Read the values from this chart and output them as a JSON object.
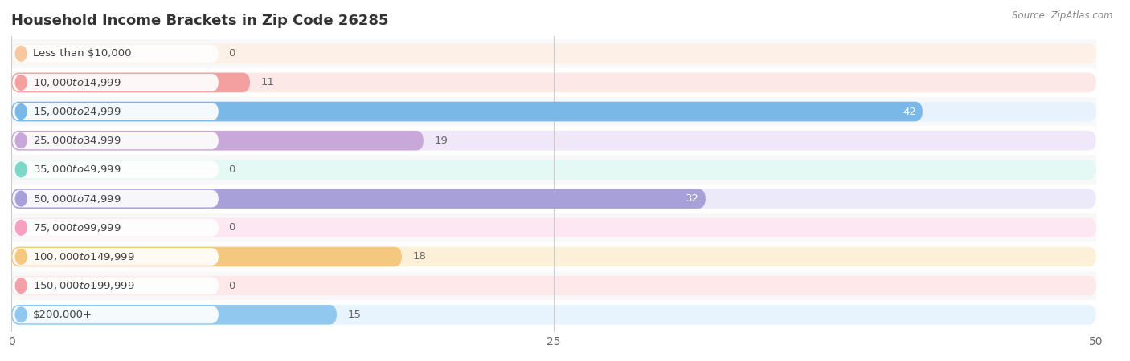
{
  "title": "Household Income Brackets in Zip Code 26285",
  "source": "Source: ZipAtlas.com",
  "categories": [
    "Less than $10,000",
    "$10,000 to $14,999",
    "$15,000 to $24,999",
    "$25,000 to $34,999",
    "$35,000 to $49,999",
    "$50,000 to $74,999",
    "$75,000 to $99,999",
    "$100,000 to $149,999",
    "$150,000 to $199,999",
    "$200,000+"
  ],
  "values": [
    0,
    11,
    42,
    19,
    0,
    32,
    0,
    18,
    0,
    15
  ],
  "bar_colors": [
    "#f5c8a0",
    "#f4a0a0",
    "#7ab8e8",
    "#c8a8d8",
    "#7dd8c8",
    "#a8a0d8",
    "#f8a0c0",
    "#f5c880",
    "#f4a0a8",
    "#90c8f0"
  ],
  "bg_bar_colors": [
    "#fdf0e6",
    "#fde8e8",
    "#e8f2fc",
    "#f0e8f8",
    "#e4f8f4",
    "#eceaf8",
    "#fde8f2",
    "#fdf0d8",
    "#fde8ea",
    "#e8f4fd"
  ],
  "xlim": [
    0,
    50
  ],
  "xticks": [
    0,
    25,
    50
  ],
  "bar_height": 0.68,
  "figure_bg": "#ffffff",
  "row_bg_even": "#f8f8f8",
  "row_bg_odd": "#ffffff",
  "title_fontsize": 13,
  "axis_fontsize": 10
}
